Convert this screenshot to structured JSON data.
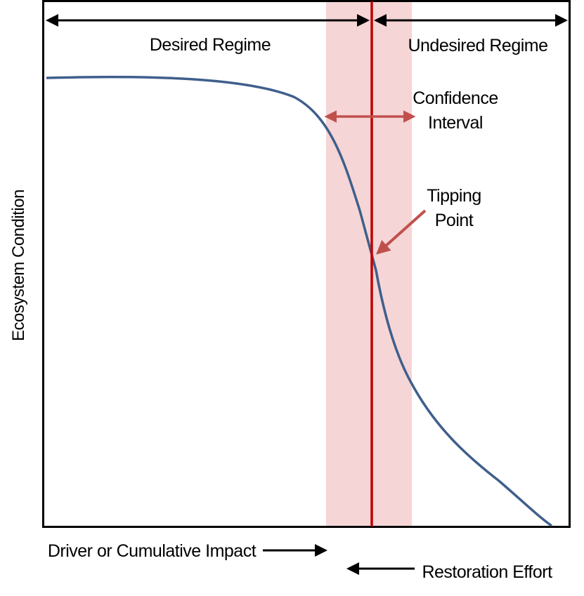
{
  "labels": {
    "desired_regime": "Desired Regime",
    "undesired_regime": "Undesired Regime",
    "confidence_line1": "Confidence",
    "confidence_line2": "Interval",
    "tipping_line1": "Tipping",
    "tipping_line2": "Point",
    "y_axis": "Ecosystem Condition",
    "driver": "Driver or Cumulative Impact",
    "restoration": "Restoration Effort"
  },
  "colors": {
    "curve": "#3f5f8c",
    "threshold_line": "#c00000",
    "band": "#f6d5d6",
    "annotation_arrow": "#c0504d",
    "regime_arrow": "#000000"
  }
}
